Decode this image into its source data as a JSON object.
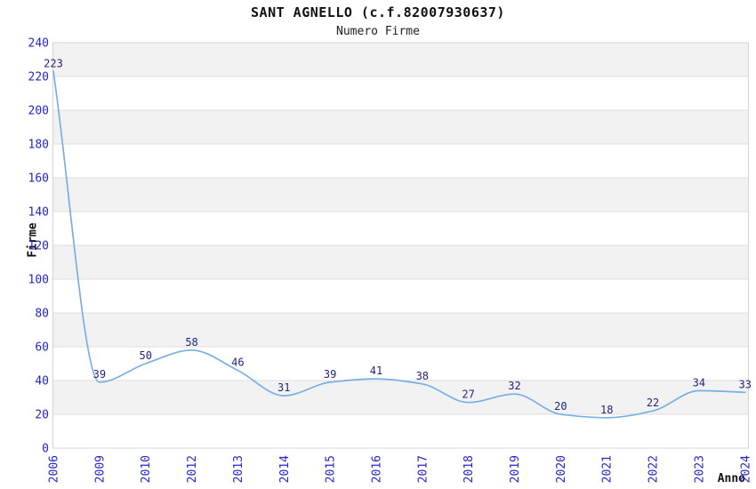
{
  "header": {
    "title": "SANT AGNELLO (c.f.82007930637)",
    "subtitle": "Numero Firme"
  },
  "chart_data": {
    "type": "line",
    "title": "SANT AGNELLO (c.f.82007930637)",
    "subtitle": "Numero Firme",
    "xlabel": "Anno",
    "ylabel": "Firme",
    "categories": [
      "2006",
      "2009",
      "2010",
      "2012",
      "2013",
      "2014",
      "2015",
      "2016",
      "2017",
      "2018",
      "2019",
      "2020",
      "2021",
      "2022",
      "2023",
      "2024"
    ],
    "values": [
      223,
      39,
      50,
      58,
      46,
      31,
      39,
      41,
      38,
      27,
      32,
      20,
      18,
      22,
      34,
      33
    ],
    "ylim": [
      0,
      240
    ],
    "yticks": [
      0,
      20,
      40,
      60,
      80,
      100,
      120,
      140,
      160,
      180,
      200,
      220,
      240
    ],
    "grid": "horizontal",
    "banding": "alternating-gray-white-from-top",
    "legend_position": "none",
    "point_labels_visible": true,
    "colors": {
      "line": "#79AFE4",
      "point_label": "#23237E",
      "tick_label": "#2525CC",
      "band_gray": "#F2F2F2",
      "band_white": "#FFFFFF",
      "gridline": "#DFDFDF",
      "plot_border": "#D4D4D4",
      "title_text": "#111111",
      "axis_title_text": "#111111",
      "background": "#FFFFFF"
    }
  }
}
